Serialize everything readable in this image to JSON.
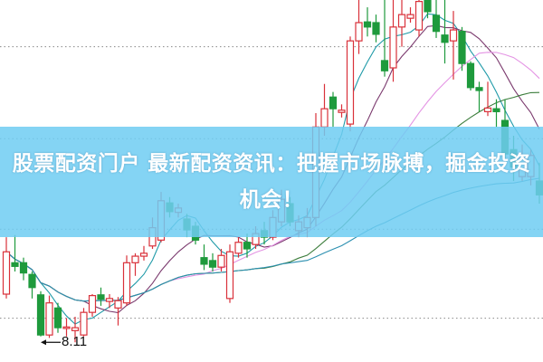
{
  "banner": {
    "title": "股票配资门户 最新配资资讯：把握市场脉搏，掘金投资机会！"
  },
  "chart_data": {
    "type": "candlestick",
    "title": "",
    "xlabel": "",
    "ylabel": "",
    "ylim": [
      7.84,
      12.8
    ],
    "grid": true,
    "gridlines": [
      12.16,
      10.9,
      9.66,
      8.44
    ],
    "colors": {
      "up": "#d9313a",
      "down": "#1e9a3c",
      "ma5": "#1f9aa8",
      "ma10": "#7b3a6e",
      "ma20": "#e494e4",
      "ma30": "#3c7d3c",
      "ma60": "#2b8fb0"
    },
    "moving_averages": [
      5,
      10,
      20,
      30,
      60
    ],
    "annotation": {
      "text": "8.11",
      "price": 8.11,
      "candle_index": 8
    },
    "ohlc": [
      [
        8.77,
        9.35,
        9.55,
        8.71
      ],
      [
        9.2,
        9.15,
        9.58,
        9.08
      ],
      [
        9.2,
        9.06,
        9.27,
        8.96
      ],
      [
        9.04,
        8.86,
        9.08,
        8.71
      ],
      [
        8.76,
        8.21,
        8.81,
        8.19
      ],
      [
        8.21,
        8.65,
        8.75,
        8.17
      ],
      [
        8.58,
        8.31,
        8.65,
        8.24
      ],
      [
        8.3,
        8.32,
        8.44,
        8.19
      ],
      [
        8.27,
        8.31,
        8.46,
        8.11
      ],
      [
        8.21,
        8.52,
        8.58,
        8.19
      ],
      [
        8.52,
        8.75,
        8.77,
        8.46
      ],
      [
        8.76,
        8.7,
        8.86,
        8.61
      ],
      [
        8.67,
        8.71,
        8.77,
        8.58
      ],
      [
        8.58,
        8.68,
        8.73,
        8.34
      ],
      [
        8.65,
        9.2,
        9.3,
        8.61
      ],
      [
        9.2,
        9.29,
        9.33,
        9.02
      ],
      [
        9.29,
        9.33,
        9.43,
        9.23
      ],
      [
        9.43,
        9.68,
        9.82,
        9.39
      ],
      [
        9.51,
        10.05,
        10.17,
        9.48
      ],
      [
        10.02,
        9.9,
        10.1,
        9.82
      ],
      [
        9.89,
        9.95,
        10.01,
        9.82
      ],
      [
        9.8,
        9.65,
        9.87,
        9.55
      ],
      [
        9.7,
        9.51,
        9.76,
        9.45
      ],
      [
        9.27,
        9.18,
        9.45,
        9.1
      ],
      [
        9.23,
        9.14,
        9.33,
        9.08
      ],
      [
        9.14,
        9.3,
        9.39,
        9.08
      ],
      [
        8.71,
        9.35,
        9.45,
        8.65
      ],
      [
        9.33,
        9.48,
        9.55,
        9.27
      ],
      [
        9.48,
        9.39,
        9.6,
        9.27
      ],
      [
        9.45,
        9.6,
        9.7,
        9.39
      ],
      [
        9.64,
        9.55,
        9.76,
        9.45
      ],
      [
        9.55,
        9.82,
        9.92,
        9.51
      ],
      [
        9.76,
        10.07,
        10.2,
        9.7
      ],
      [
        10.01,
        9.76,
        10.1,
        9.7
      ],
      [
        9.64,
        9.76,
        9.85,
        9.55
      ],
      [
        9.68,
        9.82,
        9.95,
        9.55
      ],
      [
        9.82,
        11.06,
        11.25,
        9.7
      ],
      [
        11.06,
        11.31,
        11.65,
        10.94
      ],
      [
        11.47,
        11.31,
        11.54,
        11.06
      ],
      [
        11.26,
        11.29,
        11.37,
        11.19
      ],
      [
        11.1,
        12.24,
        12.3,
        11.0
      ],
      [
        12.24,
        12.49,
        12.8,
        12.06
      ],
      [
        12.5,
        12.43,
        12.7,
        12.3
      ],
      [
        12.49,
        12.33,
        12.6,
        12.22
      ],
      [
        11.97,
        11.83,
        12.8,
        11.75
      ],
      [
        11.87,
        12.43,
        12.8,
        11.68
      ],
      [
        12.43,
        12.6,
        12.8,
        12.16
      ],
      [
        12.55,
        12.6,
        12.7,
        12.49
      ],
      [
        12.39,
        12.78,
        12.8,
        12.3
      ],
      [
        12.8,
        12.64,
        12.8,
        12.55
      ],
      [
        12.59,
        12.37,
        12.8,
        12.28
      ],
      [
        12.32,
        12.22,
        12.8,
        11.93
      ],
      [
        12.24,
        12.39,
        12.65,
        11.71
      ],
      [
        12.37,
        11.93,
        12.43,
        11.83
      ],
      [
        11.93,
        11.6,
        11.96,
        11.56
      ],
      [
        11.6,
        11.56,
        11.68,
        11.27
      ],
      [
        11.27,
        11.32,
        11.68,
        11.21
      ],
      [
        11.31,
        11.27,
        11.44,
        11.06
      ],
      [
        11.15,
        10.69,
        11.44,
        10.63
      ],
      [
        10.75,
        10.51,
        10.94,
        10.32
      ],
      [
        10.38,
        10.63,
        10.82,
        10.32
      ],
      [
        10.38,
        10.67,
        10.75,
        10.26
      ],
      [
        10.32,
        10.13,
        10.57,
        10.01
      ]
    ]
  }
}
